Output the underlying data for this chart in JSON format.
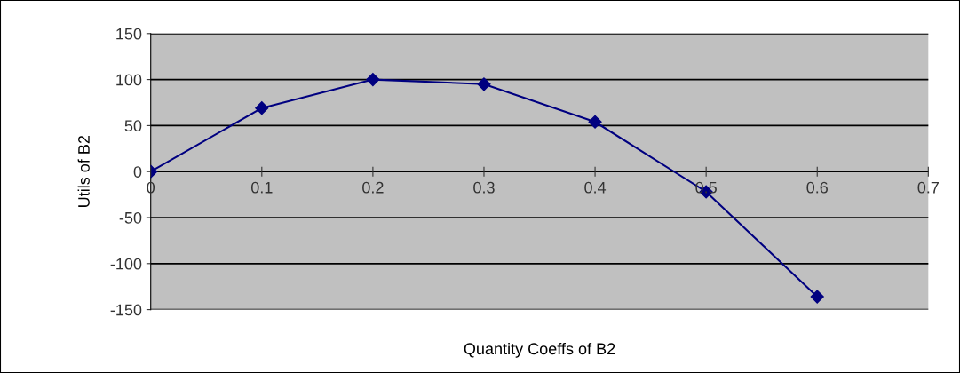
{
  "chart_data": {
    "type": "line",
    "xlabel": "Quantity Coeffs of B2",
    "ylabel": "Utils of B2",
    "x": [
      0,
      0.1,
      0.2,
      0.3,
      0.4,
      0.5,
      0.6
    ],
    "series": [
      {
        "color": "#000080",
        "values": [
          0,
          69,
          100,
          95,
          54,
          -22,
          -136
        ]
      }
    ],
    "xlim": [
      0,
      0.7
    ],
    "xticks": [
      0,
      0.1,
      0.2,
      0.3,
      0.4,
      0.5,
      0.6,
      0.7
    ],
    "ylim": [
      -150,
      150
    ],
    "yticks": [
      -150,
      -100,
      -50,
      0,
      50,
      100,
      150
    ],
    "grid": "y",
    "marker": "diamond",
    "line_style": "solid"
  }
}
